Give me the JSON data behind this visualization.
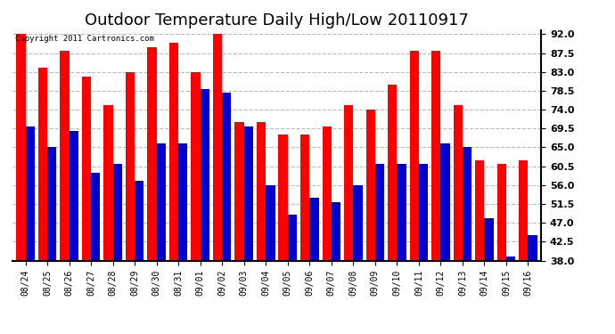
{
  "title": "Outdoor Temperature Daily High/Low 20110917",
  "copyright": "Copyright 2011 Cartronics.com",
  "dates": [
    "08/24",
    "08/25",
    "08/26",
    "08/27",
    "08/28",
    "08/29",
    "08/30",
    "08/31",
    "09/01",
    "09/02",
    "09/03",
    "09/04",
    "09/05",
    "09/06",
    "09/07",
    "09/08",
    "09/09",
    "09/10",
    "09/11",
    "09/12",
    "09/13",
    "09/14",
    "09/15",
    "09/16"
  ],
  "highs": [
    92,
    84,
    88,
    82,
    75,
    83,
    89,
    90,
    83,
    92,
    71,
    71,
    68,
    68,
    70,
    75,
    74,
    80,
    88,
    88,
    75,
    62,
    61,
    62
  ],
  "lows": [
    70,
    65,
    69,
    59,
    61,
    57,
    66,
    66,
    79,
    78,
    70,
    56,
    49,
    53,
    52,
    56,
    61,
    61,
    61,
    66,
    65,
    48,
    39,
    44
  ],
  "ylim": [
    38,
    93
  ],
  "yticks": [
    38.0,
    42.5,
    47.0,
    51.5,
    56.0,
    60.5,
    65.0,
    69.5,
    74.0,
    78.5,
    83.0,
    87.5,
    92.0
  ],
  "high_color": "#FF0000",
  "low_color": "#0000CC",
  "grid_color": "#BBBBBB",
  "bg_color": "#FFFFFF",
  "title_fontsize": 13
}
